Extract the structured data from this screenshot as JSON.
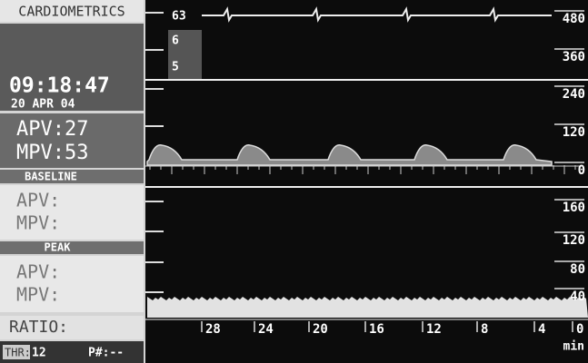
{
  "header": {
    "brand": "CARDIOMETRICS"
  },
  "clock": {
    "time": "09:18:47",
    "date": "20 APR 04"
  },
  "current": {
    "apv": "APV:27",
    "mpv": "MPV:53"
  },
  "baseline": {
    "title": "BASELINE",
    "apv": "APV:",
    "mpv": "MPV:"
  },
  "peak": {
    "title": "PEAK",
    "apv": "APV:",
    "mpv": "MPV:"
  },
  "ratio": "RATIO:",
  "status": {
    "thr_label": "THR:",
    "thr_value": "12",
    "probe": "P#:--"
  },
  "top_trace": {
    "labels": [
      "63",
      "6",
      "5"
    ],
    "scale": [
      "480",
      "360"
    ]
  },
  "velocity_trace": {
    "scale": [
      "240",
      "120",
      "0"
    ]
  },
  "trend": {
    "scale": [
      "160",
      "120",
      "80",
      "40"
    ],
    "time_axis": [
      "28",
      "24",
      "20",
      "16",
      "12",
      "8",
      "4",
      "0"
    ],
    "unit": "min"
  }
}
